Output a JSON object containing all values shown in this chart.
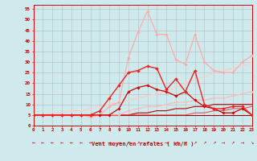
{
  "xlabel": "Vent moyen/en rafales ( km/h )",
  "background_color": "#ceeaed",
  "grid_color": "#b0b0b0",
  "text_color": "#cc0000",
  "x_ticks": [
    0,
    1,
    2,
    3,
    4,
    5,
    6,
    7,
    8,
    9,
    10,
    11,
    12,
    13,
    14,
    15,
    16,
    17,
    18,
    19,
    20,
    21,
    22,
    23
  ],
  "y_ticks": [
    0,
    5,
    10,
    15,
    20,
    25,
    30,
    35,
    40,
    45,
    50,
    55
  ],
  "xlim": [
    0,
    23
  ],
  "ylim": [
    0,
    57
  ],
  "lines": [
    {
      "x": [
        0,
        1,
        2,
        3,
        4,
        5,
        6,
        7,
        8,
        9,
        10,
        11,
        12,
        13,
        14,
        15,
        16,
        17,
        18,
        19,
        20,
        21,
        22,
        23
      ],
      "y": [
        5,
        5,
        5,
        5,
        5,
        5,
        4,
        5,
        9,
        11,
        32,
        44,
        54,
        43,
        43,
        31,
        29,
        43,
        30,
        26,
        25,
        25,
        30,
        33
      ],
      "color": "#ffaaaa",
      "lw": 0.9,
      "marker": "D",
      "ms": 1.8,
      "zorder": 3
    },
    {
      "x": [
        0,
        1,
        2,
        3,
        4,
        5,
        6,
        7,
        8,
        9,
        10,
        11,
        12,
        13,
        14,
        15,
        16,
        17,
        18,
        19,
        20,
        21,
        22,
        23
      ],
      "y": [
        5,
        5,
        5,
        5,
        5,
        5,
        5,
        7,
        13,
        19,
        25,
        26,
        28,
        27,
        17,
        22,
        16,
        26,
        10,
        8,
        8,
        9,
        9,
        5
      ],
      "color": "#ee2222",
      "lw": 1.0,
      "marker": "D",
      "ms": 2.0,
      "zorder": 5
    },
    {
      "x": [
        0,
        1,
        2,
        3,
        4,
        5,
        6,
        7,
        8,
        9,
        10,
        11,
        12,
        13,
        14,
        15,
        16,
        17,
        18,
        19,
        20,
        21,
        22,
        23
      ],
      "y": [
        5,
        5,
        5,
        5,
        5,
        5,
        5,
        5,
        5,
        8,
        16,
        18,
        19,
        17,
        16,
        14,
        16,
        12,
        9,
        8,
        6,
        6,
        8,
        5
      ],
      "color": "#cc0000",
      "lw": 0.9,
      "marker": "D",
      "ms": 1.8,
      "zorder": 4
    },
    {
      "x": [
        0,
        1,
        2,
        3,
        4,
        5,
        6,
        7,
        8,
        9,
        10,
        11,
        12,
        13,
        14,
        15,
        16,
        17,
        18,
        19,
        20,
        21,
        22,
        23
      ],
      "y": [
        5,
        5,
        5,
        5,
        5,
        5,
        5,
        5,
        5,
        5,
        7,
        8,
        9,
        9,
        10,
        11,
        11,
        12,
        12,
        13,
        13,
        14,
        15,
        16
      ],
      "color": "#ffbbbb",
      "lw": 0.9,
      "marker": "D",
      "ms": 1.5,
      "zorder": 3
    },
    {
      "x": [
        0,
        1,
        2,
        3,
        4,
        5,
        6,
        7,
        8,
        9,
        10,
        11,
        12,
        13,
        14,
        15,
        16,
        17,
        18,
        19,
        20,
        21,
        22,
        23
      ],
      "y": [
        5,
        5,
        6,
        6,
        7,
        7,
        8,
        9,
        10,
        11,
        12,
        13,
        14,
        15,
        16,
        18,
        20,
        22,
        23,
        25,
        26,
        27,
        28,
        30
      ],
      "color": "#ffcccc",
      "lw": 0.9,
      "marker": null,
      "ms": 0,
      "zorder": 2
    },
    {
      "x": [
        0,
        1,
        2,
        3,
        4,
        5,
        6,
        7,
        8,
        9,
        10,
        11,
        12,
        13,
        14,
        15,
        16,
        17,
        18,
        19,
        20,
        21,
        22,
        23
      ],
      "y": [
        5,
        5,
        5,
        5,
        5,
        5,
        5,
        5,
        5,
        5,
        5,
        6,
        6,
        7,
        7,
        8,
        8,
        9,
        9,
        10,
        10,
        10,
        10,
        10
      ],
      "color": "#bb0000",
      "lw": 0.8,
      "marker": null,
      "ms": 0,
      "zorder": 2
    },
    {
      "x": [
        0,
        1,
        2,
        3,
        4,
        5,
        6,
        7,
        8,
        9,
        10,
        11,
        12,
        13,
        14,
        15,
        16,
        17,
        18,
        19,
        20,
        21,
        22,
        23
      ],
      "y": [
        5,
        5,
        5,
        5,
        5,
        5,
        5,
        5,
        5,
        5,
        5,
        5,
        5,
        5,
        5,
        5,
        5,
        5,
        5,
        5,
        5,
        5,
        5,
        5
      ],
      "color": "#990000",
      "lw": 0.8,
      "marker": null,
      "ms": 0,
      "zorder": 2
    },
    {
      "x": [
        0,
        1,
        2,
        3,
        4,
        5,
        6,
        7,
        8,
        9,
        10,
        11,
        12,
        13,
        14,
        15,
        16,
        17,
        18,
        19,
        20,
        21,
        22,
        23
      ],
      "y": [
        5,
        5,
        5,
        5,
        5,
        5,
        5,
        5,
        5,
        5,
        5,
        5,
        5,
        5,
        5,
        5,
        5,
        6,
        6,
        7,
        7,
        8,
        8,
        9
      ],
      "color": "#dd4444",
      "lw": 0.7,
      "marker": null,
      "ms": 0,
      "zorder": 2
    }
  ],
  "arrow_chars": [
    "←",
    "←",
    "←",
    "←",
    "←",
    "←",
    "←",
    "←",
    "→",
    "→",
    "↗",
    "↗",
    "↗",
    "→",
    "→",
    "↗",
    "↗",
    "↗",
    "↗",
    "↗",
    "→",
    "↗",
    "→",
    "↘"
  ]
}
